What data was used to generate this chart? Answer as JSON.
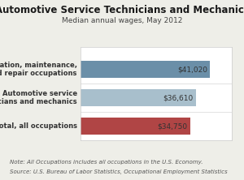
{
  "title": "Automotive Service Technicians and Mechanics",
  "subtitle": "Median annual wages, May 2012",
  "categories": [
    "Installation, maintenance,\nand repair occupations",
    "Automotive service\ntechnicians and mechanics",
    "Total, all occupations"
  ],
  "values": [
    41020,
    36610,
    34750
  ],
  "labels": [
    "$41,020",
    "$36,610",
    "$34,750"
  ],
  "bar_colors": [
    "#6b8fa8",
    "#a8bfcc",
    "#b04545"
  ],
  "note_line1": "Note: All Occupations includes all occupations in the U.S. Economy.",
  "note_line2": "Source: U.S. Bureau of Labor Statistics, Occupational Employment Statistics",
  "figure_bg": "#eeeee8",
  "plot_bg": "#ffffff",
  "xlim": [
    0,
    48000
  ],
  "title_fontsize": 8.5,
  "subtitle_fontsize": 6.5,
  "tick_fontsize": 6.0,
  "label_fontsize": 6.5,
  "note_fontsize": 5.0,
  "title_color": "#1a1a1a",
  "subtitle_color": "#444444",
  "label_color": "#333333",
  "note_color": "#555555",
  "ytick_color": "#333333"
}
